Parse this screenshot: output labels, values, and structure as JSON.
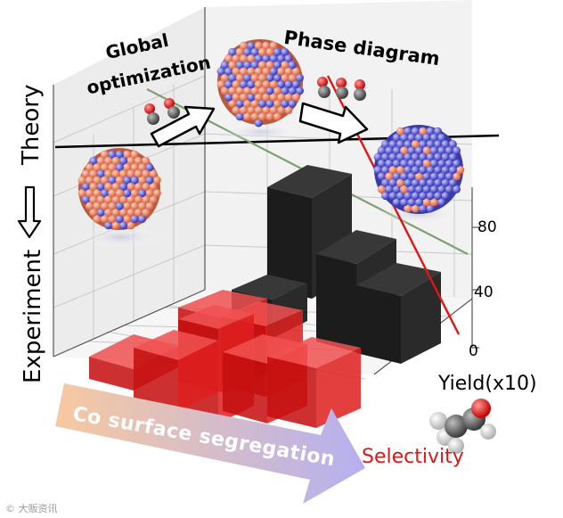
{
  "labels": {
    "theory": "Theory",
    "experiment": "Experiment",
    "global_optimization_line1": "Global",
    "global_optimization_line2": "optimization",
    "phase_diagram": "Phase diagram",
    "yield_axis": "Yield(x10)",
    "selectivity": "Selectivity",
    "co_surface_segregation": "Co surface segregation"
  },
  "chart_data": {
    "type": "bar",
    "z_ticks": [
      "0",
      "40",
      "80"
    ],
    "z_range": [
      0,
      100
    ],
    "grid": true
  },
  "watermark": "© 大贩资讯",
  "colors": {
    "selectivity_bars": "#e01a1a",
    "yield_bars": "#222222",
    "cu_atoms": "#e8846a",
    "co_atoms": "#5a5ad8",
    "segregation_arrow_start": "#f7c9a0",
    "segregation_arrow_end": "#b7b2ee"
  },
  "icons": [
    "co-molecule-icon",
    "acetaldehyde-molecule-icon",
    "nanoparticle-icon"
  ]
}
